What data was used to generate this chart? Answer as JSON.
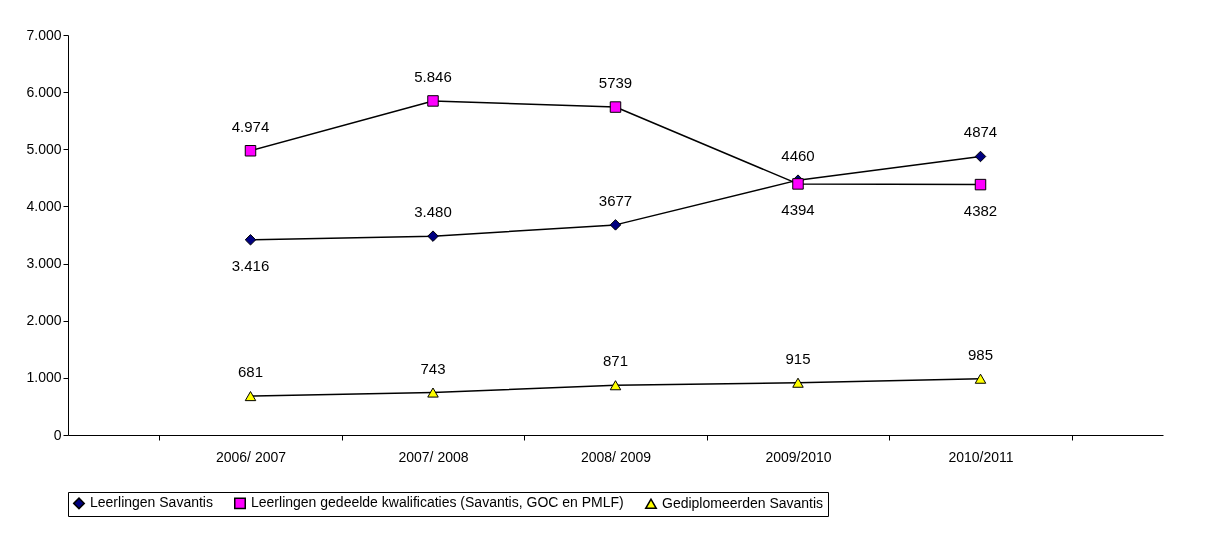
{
  "chart_data": {
    "type": "line",
    "categories": [
      "2006/ 2007",
      "2007/ 2008",
      "2008/ 2009",
      "2009/2010",
      "2010/2011"
    ],
    "series": [
      {
        "name": "Leerlingen Savantis",
        "color": "#000080",
        "marker": "diamond",
        "values": [
          3416,
          3480,
          3677,
          4460,
          4874
        ],
        "value_labels": [
          "3.416",
          "3.480",
          "3677",
          "4460",
          "4874"
        ]
      },
      {
        "name": "Leerlingen gedeelde kwalificaties (Savantis, GOC en PMLF)",
        "color": "#ff00ff",
        "marker": "square",
        "values": [
          4974,
          5846,
          5739,
          4394,
          4382
        ],
        "value_labels": [
          "4.974",
          "5.846",
          "5739",
          "4394",
          "4382"
        ]
      },
      {
        "name": "Gediplomeerden Savantis",
        "color": "#ffff00",
        "marker": "triangle",
        "values": [
          681,
          743,
          871,
          915,
          985
        ],
        "value_labels": [
          "681",
          "743",
          "871",
          "915",
          "985"
        ]
      }
    ],
    "ylim": [
      0,
      7000
    ],
    "yticks": [
      0,
      {
        "value": 1000,
        "label": "1.000"
      },
      {
        "value": 2000,
        "label": "2.000"
      },
      {
        "value": 3000,
        "label": "3.000"
      },
      {
        "value": 4000,
        "label": "4.000"
      },
      {
        "value": 5000,
        "label": "5.000"
      },
      {
        "value": 6000,
        "label": "6.000"
      },
      {
        "value": 7000,
        "label": "7.000"
      }
    ],
    "grid": false,
    "legend": "bottom"
  }
}
